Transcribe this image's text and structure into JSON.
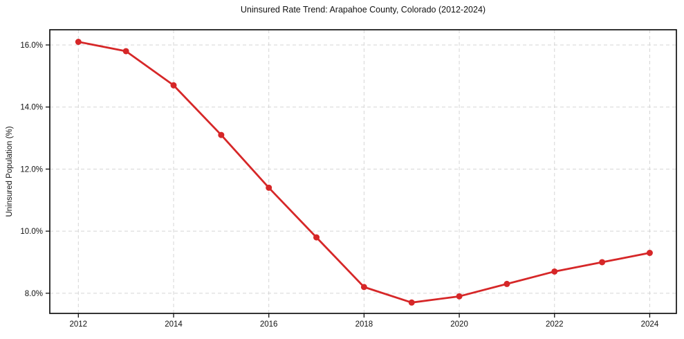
{
  "chart": {
    "title": "Uninsured Rate Trend: Arapahoe County, Colorado (2012-2024)",
    "ylabel": "Uninsured Population (%)"
  },
  "chart_data": {
    "type": "line",
    "title": "Uninsured Rate Trend: Arapahoe County, Colorado (2012-2024)",
    "xlabel": "",
    "ylabel": "Uninsured Population (%)",
    "series": [
      {
        "name": "Uninsured Rate",
        "x": [
          2012,
          2013,
          2014,
          2015,
          2016,
          2017,
          2018,
          2019,
          2020,
          2021,
          2022,
          2023,
          2024
        ],
        "values": [
          16.1,
          15.8,
          14.7,
          13.1,
          11.4,
          9.8,
          8.2,
          7.7,
          7.9,
          8.3,
          8.7,
          9.0,
          9.3
        ]
      }
    ],
    "xlim": [
      2011.4,
      2024.56
    ],
    "ylim": [
      7.35,
      16.49
    ],
    "xticks": [
      2012,
      2014,
      2016,
      2018,
      2020,
      2022,
      2024
    ],
    "xticklabels": [
      "2012",
      "2014",
      "2016",
      "2018",
      "2020",
      "2022",
      "2024"
    ],
    "yticks": [
      8.0,
      10.0,
      12.0,
      14.0,
      16.0
    ],
    "yticklabels": [
      "8.0%",
      "10.0%",
      "12.0%",
      "14.0%",
      "16.0%"
    ],
    "grid": true,
    "grid_style": "dashed",
    "legend": "none",
    "line_color": "#d62728",
    "marker": "circle",
    "grid_color": "#d5d5d5",
    "spine_color": "#111111",
    "background_color": "#ffffff"
  }
}
